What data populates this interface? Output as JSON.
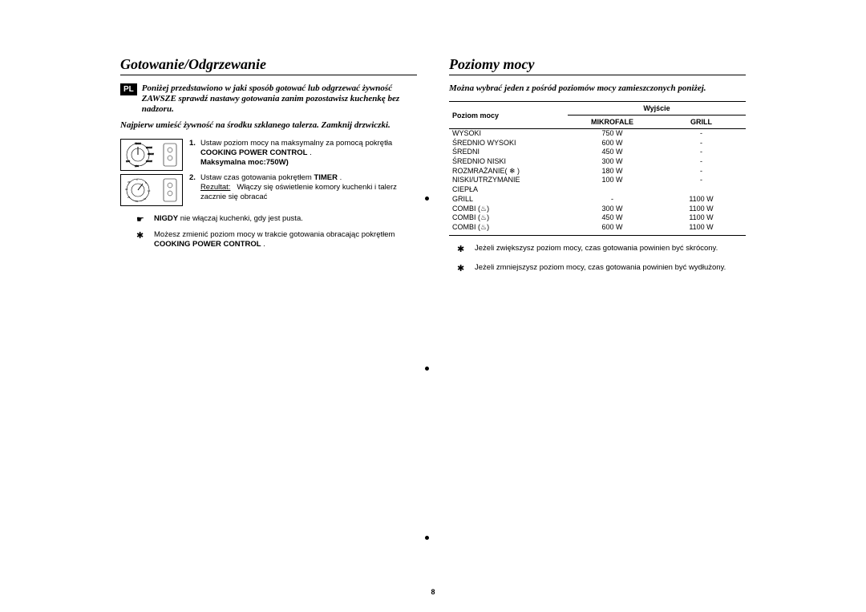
{
  "page": {
    "number": "8",
    "lang_tag": "PL"
  },
  "left": {
    "title": "Gotowanie/Odgrzewanie",
    "intro1": "Poniżej przedstawiono w jaki sposób gotować lub odgrzewać żywność ZAWSZE sprawdź nastawy gotowania zanim pozostawisz kuchenkę bez nadzoru.",
    "intro2": "Najpierw umieść żywność na środku szklanego talerza. Zamknij drzwiczki.",
    "step1_num": "1.",
    "step1_text_a": "Ustaw poziom mocy na maksymalny za pomocą pokrętła ",
    "step1_text_b": "COOKING POWER CONTROL",
    "step1_text_c": " .",
    "step1_text_d": "Maksymalna moc:750W)",
    "step2_num": "2.",
    "step2_text_a": "Ustaw czas gotowania pokrętłem ",
    "step2_text_b": "TIMER",
    "step2_text_c": " .",
    "step2_result_label": "Rezultat:",
    "step2_result_text": "Włączy się oświetlenie komory kuchenki i talerz zacznie się obracać",
    "note1_prefix": "NIGDY",
    "note1_text": " nie włączaj kuchenki, gdy jest pusta.",
    "note2_text_a": "Możesz zmienić poziom mocy w trakcie gotowania obracając pokrętłem ",
    "note2_text_b": "COOKING POWER CONTROL",
    "note2_text_c": " ."
  },
  "right": {
    "title": "Poziomy mocy",
    "intro": "Można wybrać jeden z pośród poziomów mocy zamieszczonych poniżej.",
    "th_level": "Poziom mocy",
    "th_output": "Wyjście",
    "th_micro": "MIKROFALE",
    "th_grill": "GRILL",
    "rows": [
      {
        "level": "WYSOKI",
        "micro": "750 W",
        "grill": "-"
      },
      {
        "level": "ŚREDNIO WYSOKI",
        "micro": "600 W",
        "grill": "-"
      },
      {
        "level": "ŚREDNI",
        "micro": "450 W",
        "grill": "-"
      },
      {
        "level": "ŚREDNIO NISKI",
        "micro": "300 W",
        "grill": "-"
      },
      {
        "level": "ROZMRAŻANIE( ❄ )",
        "micro": "180 W",
        "grill": "-"
      },
      {
        "level": "NISKI/UTRZYMANIE",
        "micro": "100 W",
        "grill": "-"
      },
      {
        "level": "CIEPŁA",
        "micro": "",
        "grill": ""
      },
      {
        "level": "GRILL",
        "micro": "-",
        "grill": "1100 W"
      },
      {
        "level": "COMBI (♨)",
        "micro": "300 W",
        "grill": "1100 W"
      },
      {
        "level": "COMBI (♨)",
        "micro": "450 W",
        "grill": "1100 W"
      },
      {
        "level": "COMBI (♨)",
        "micro": "600 W",
        "grill": "1100 W"
      }
    ],
    "note1": "Jeżeli zwiększysz poziom mocy, czas gotowania powinien być skrócony.",
    "note2": "Jeżeli zmniejszysz poziom mocy, czas gotowania powinien być wydłużony."
  },
  "style": {
    "text_color": "#000000",
    "bg_color": "#ffffff",
    "title_fontsize": 18,
    "body_fontsize": 9.5,
    "table_fontsize": 9
  }
}
